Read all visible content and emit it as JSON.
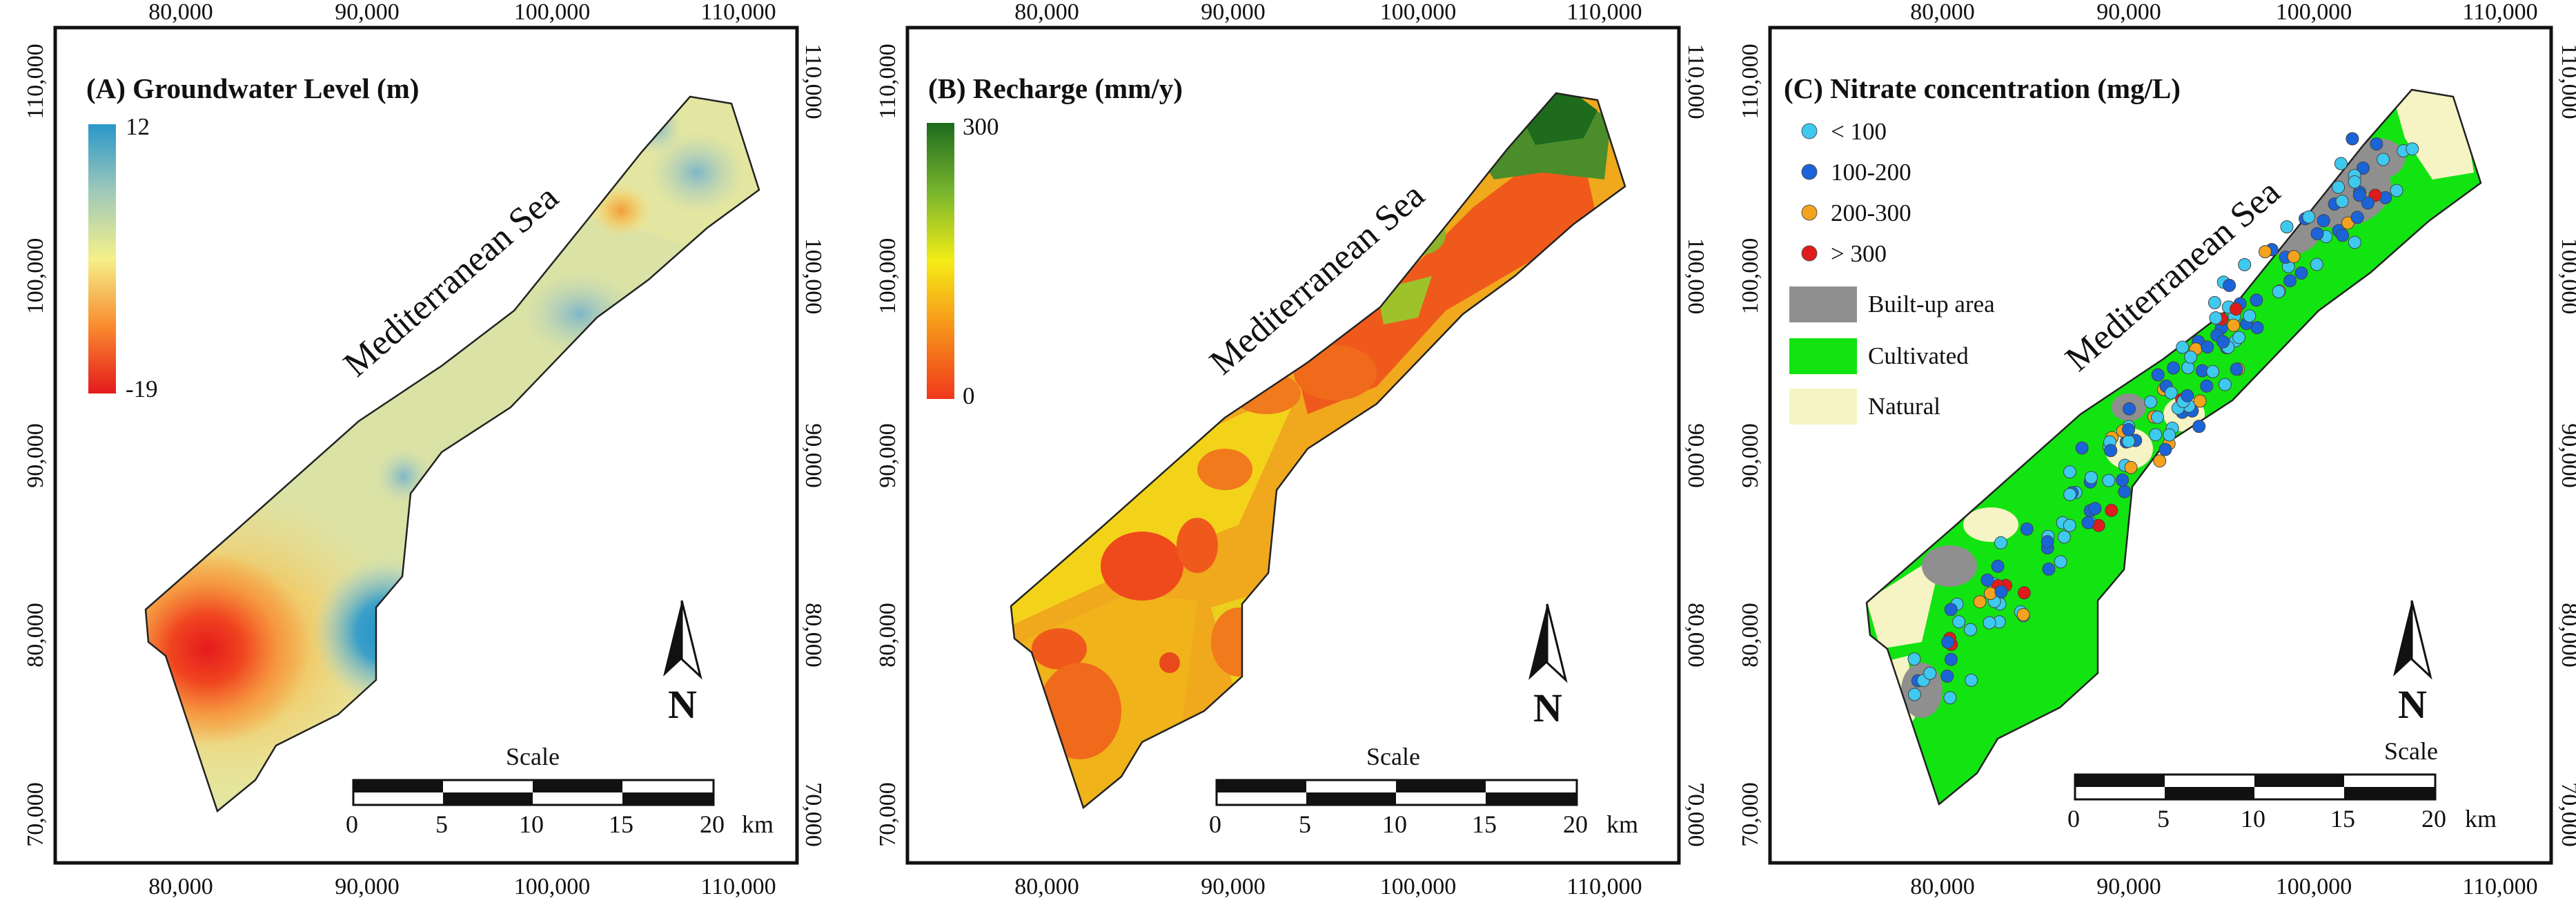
{
  "panels": [
    {
      "id": "A",
      "title": "(A) Groundwater Level (m)",
      "legend": {
        "max_label": "12",
        "min_label": "-19",
        "max": 12,
        "min": -19,
        "colors": [
          "#e41a1c",
          "#f98b2e",
          "#f4f08a",
          "#9fc9b9",
          "#2a97c8"
        ]
      },
      "sea_label": "Mediterranean Sea",
      "north_label": "N",
      "scale": {
        "title": "Scale",
        "ticks": [
          "0",
          "5",
          "10",
          "15",
          "20"
        ],
        "unit": "km"
      },
      "x_ticks": [
        "80,000",
        "90,000",
        "100,000",
        "110,000"
      ],
      "y_ticks": [
        "110,000",
        "100,000",
        "90,000",
        "80,000",
        "70,000"
      ]
    },
    {
      "id": "B",
      "title": "(B) Recharge (mm/y)",
      "legend": {
        "max_label": "300",
        "min_label": "0",
        "max": 300,
        "min": 0,
        "colors": [
          "#f0381c",
          "#f7a21a",
          "#f4ec17",
          "#78b52e",
          "#1e6b1e"
        ]
      },
      "sea_label": "Mediterranean Sea",
      "north_label": "N",
      "scale": {
        "title": "Scale",
        "ticks": [
          "0",
          "5",
          "10",
          "15",
          "20"
        ],
        "unit": "km"
      },
      "x_ticks": [
        "80,000",
        "90,000",
        "100,000",
        "110,000"
      ],
      "y_ticks": [
        "110,000",
        "100,000",
        "90,000",
        "80,000",
        "70,000"
      ]
    },
    {
      "id": "C",
      "title": "(C) Nitrate concentration (mg/L)",
      "legend": {
        "points": [
          {
            "label": "< 100",
            "color": "#3ec9ef"
          },
          {
            "label": "100-200",
            "color": "#1a64d8"
          },
          {
            "label": "200-300",
            "color": "#f3a31e"
          },
          {
            "label": "> 300",
            "color": "#e01b1b"
          }
        ],
        "areas": [
          {
            "label": "Built-up area",
            "color": "#8f8f8f"
          },
          {
            "label": "Cultivated",
            "color": "#12e412"
          },
          {
            "label": "Natural",
            "color": "#f6f3c4"
          }
        ]
      },
      "sea_label": "Mediterranean Sea",
      "north_label": "N",
      "scale": {
        "title": "Scale",
        "ticks": [
          "0",
          "5",
          "10",
          "15",
          "20"
        ],
        "unit": "km"
      },
      "x_ticks": [
        "80,000",
        "90,000",
        "100,000",
        "110,000"
      ],
      "y_ticks": [
        "110,000",
        "100,000",
        "90,000",
        "80,000",
        "70,000"
      ]
    }
  ]
}
